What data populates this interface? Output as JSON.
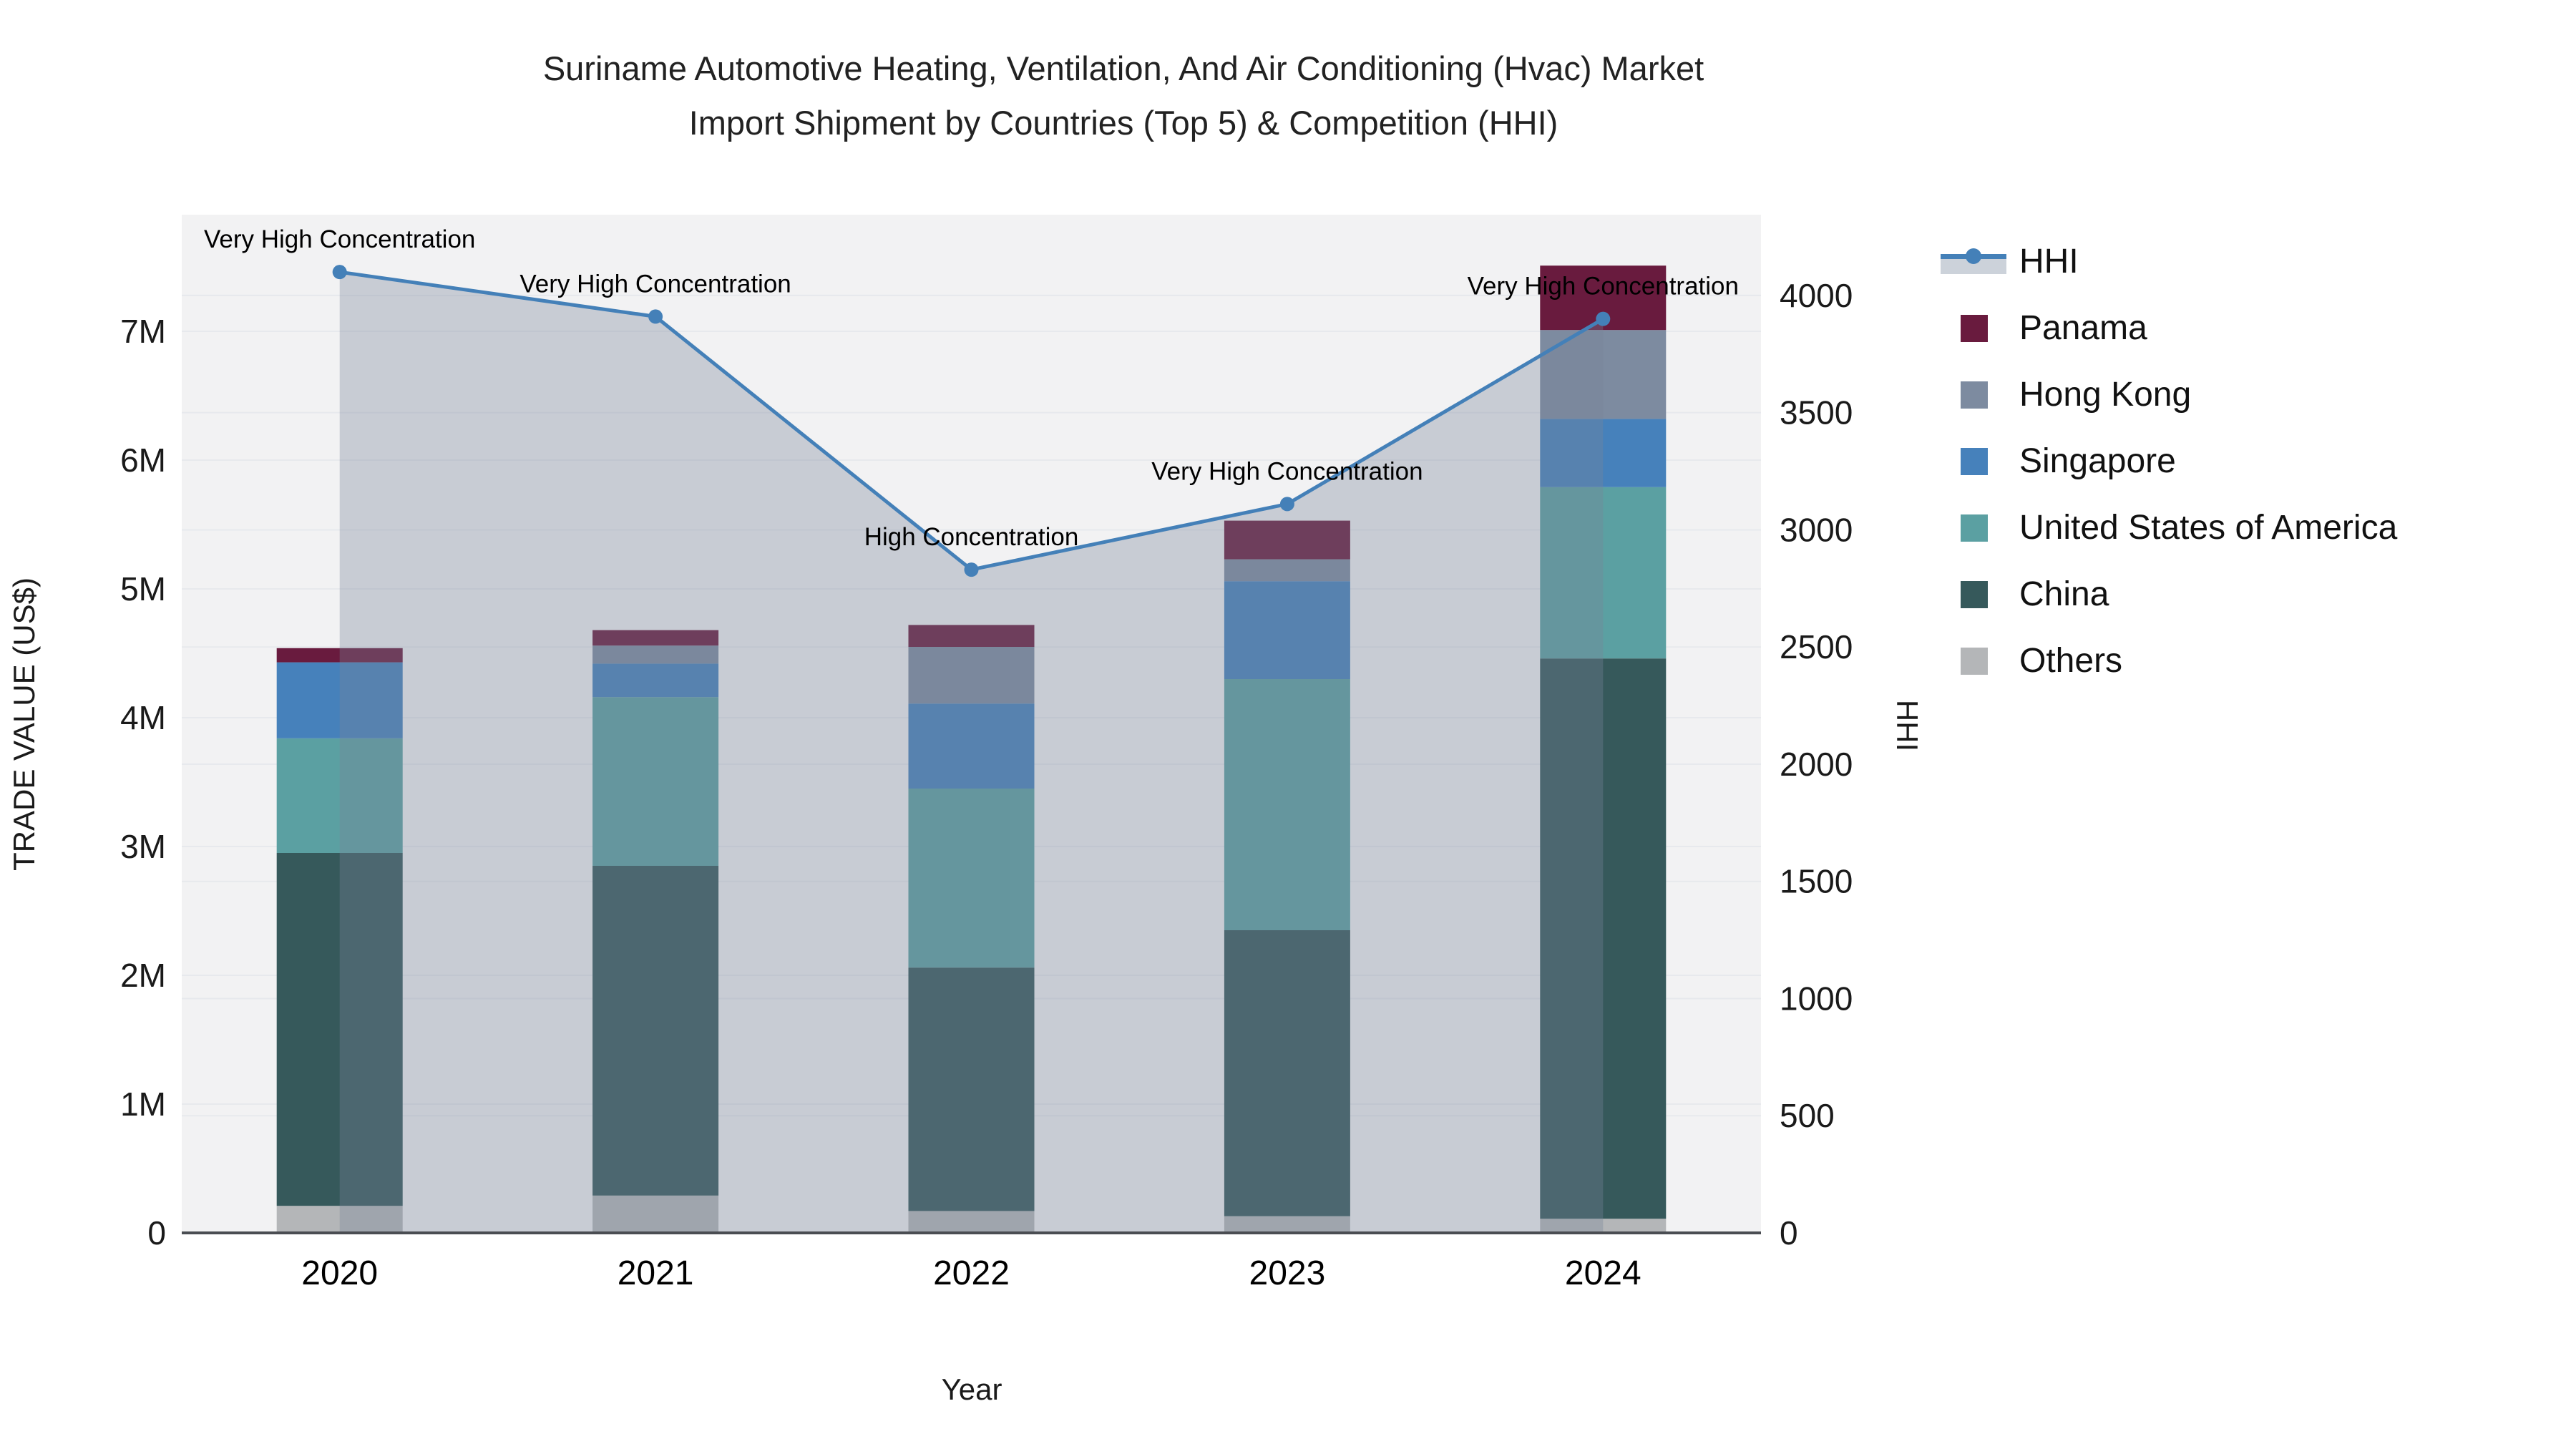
{
  "title": {
    "line1": "Suriname Automotive Heating, Ventilation, And Air Conditioning (Hvac) Market",
    "line2": "Import Shipment by Countries (Top 5) & Competition (HHI)"
  },
  "axes": {
    "x": {
      "title": "Year",
      "ticks": [
        "2020",
        "2021",
        "2022",
        "2023",
        "2024"
      ]
    },
    "y_left": {
      "title": "TRADE VALUE (US$)",
      "ticks": [
        "0",
        "1M",
        "2M",
        "3M",
        "4M",
        "5M",
        "6M",
        "7M"
      ]
    },
    "y_right": {
      "title": "HHI",
      "ticks": [
        "0",
        "500",
        "1000",
        "1500",
        "2000",
        "2500",
        "3000",
        "3500",
        "4000"
      ]
    }
  },
  "legend": {
    "items": [
      {
        "label": "HHI",
        "type": "line",
        "color": "#4480b8"
      },
      {
        "label": "Panama",
        "type": "swatch",
        "color": "#691b3e"
      },
      {
        "label": "Hong Kong",
        "type": "swatch",
        "color": "#7d8ba0"
      },
      {
        "label": "Singapore",
        "type": "swatch",
        "color": "#4681bb"
      },
      {
        "label": "United States of America",
        "type": "swatch",
        "color": "#5ba0a2"
      },
      {
        "label": "China",
        "type": "swatch",
        "color": "#36595b"
      },
      {
        "label": "Others",
        "type": "swatch",
        "color": "#b4b6b8"
      }
    ]
  },
  "chart_data": {
    "type": "bar",
    "subtype": "stacked-bar-with-line",
    "x": [
      "2020",
      "2021",
      "2022",
      "2023",
      "2024"
    ],
    "bar_value_unit": "million US$",
    "series": [
      {
        "name": "Others",
        "color": "#b4b6b8",
        "values": [
          0.21,
          0.29,
          0.17,
          0.13,
          0.11
        ]
      },
      {
        "name": "China",
        "color": "#36595b",
        "values": [
          2.74,
          2.56,
          1.89,
          2.22,
          4.35
        ]
      },
      {
        "name": "United States of America",
        "color": "#5ba0a2",
        "values": [
          0.89,
          1.31,
          1.39,
          1.95,
          1.33
        ]
      },
      {
        "name": "Singapore",
        "color": "#4681bb",
        "values": [
          0.59,
          0.26,
          0.66,
          0.76,
          0.53
        ]
      },
      {
        "name": "Hong Kong",
        "color": "#7d8ba0",
        "values": [
          0.0,
          0.14,
          0.44,
          0.17,
          0.69
        ]
      },
      {
        "name": "Panama",
        "color": "#691b3e",
        "values": [
          0.11,
          0.12,
          0.17,
          0.3,
          0.5
        ]
      }
    ],
    "bar_totals_millions": [
      4.54,
      4.68,
      4.72,
      5.53,
      7.51
    ],
    "line_series": {
      "name": "HHI",
      "axis": "right",
      "color": "#4480b8",
      "area_fill_color": "rgba(119,133,152,0.34)",
      "values": [
        4100,
        3910,
        2830,
        3110,
        3900
      ]
    },
    "annotations": [
      {
        "x": "2020",
        "text": "Very High Concentration"
      },
      {
        "x": "2021",
        "text": "Very High Concentration"
      },
      {
        "x": "2022",
        "text": "High Concentration"
      },
      {
        "x": "2023",
        "text": "Very High Concentration"
      },
      {
        "x": "2024",
        "text": "Very High Concentration"
      }
    ],
    "title": "Suriname Automotive Heating, Ventilation, And Air Conditioning (Hvac) Market Import Shipment by Countries (Top 5) & Competition (HHI)",
    "xlabel": "Year",
    "ylabel_left": "TRADE VALUE (US$)",
    "ylabel_right": "HHI",
    "ylim_left_millions": [
      0,
      7.9
    ],
    "ylim_right": [
      0,
      4345
    ],
    "grid": true,
    "legend_position": "right"
  },
  "colors": {
    "plot_bg": "#f2f2f3",
    "grid": "#e7e9ed",
    "axis_line": "#4a4d52",
    "tick_text": "#1a1a1a",
    "annotation_text": "#000000"
  }
}
